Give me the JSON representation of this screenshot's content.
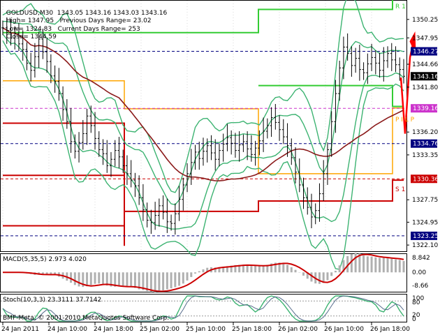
{
  "header": {
    "symbol": "GOLDUSD,M30",
    "ohlc": "1343.05 1343.16 1343.03 1343.16",
    "high": "High= 1347.95",
    "prev_range": "Previous Days Range= 23.02",
    "low": "Low= 1324.83",
    "curr_range": "Current Days Range= 253",
    "close": "Close= 1344.59"
  },
  "price_axis": {
    "ticks": [
      "1350.25",
      "1347.95",
      "1344.66",
      "1341.80",
      "1336.20",
      "1333.35",
      "1327.75",
      "1324.95",
      "1322.10"
    ],
    "badges": [
      {
        "label": "1346.27",
        "color": "#000080"
      },
      {
        "label": "1343.16",
        "color": "#000000"
      },
      {
        "label": "1339.16",
        "color": "#cc33cc"
      },
      {
        "label": "1334.76",
        "color": "#000080"
      },
      {
        "label": "1330.36",
        "color": "#cc0000"
      },
      {
        "label": "1323.25",
        "color": "#000080"
      }
    ]
  },
  "pivots": {
    "r1": "R 1",
    "pp": "P I  L P",
    "s1": "S 1"
  },
  "macd": {
    "label": "MACD(5,35,5) 2.973 4.020",
    "ticks": [
      "8.842",
      "0.00",
      "-8.66"
    ]
  },
  "stoch": {
    "label": "Stoch(10,3,3) 23.3111 37.7142",
    "ticks": [
      "100",
      "80",
      "20",
      "0"
    ],
    "copyright": "BMF-Meta, © 2001-2010 MetaQuotes Software Corp."
  },
  "time_axis": {
    "ticks": [
      "24 Jan 2011",
      "24 Jan 10:00",
      "24 Jan 18:00",
      "25 Jan 02:00",
      "25 Jan 10:00",
      "25 Jan 18:00",
      "26 Jan 02:00",
      "26 Jan 10:00",
      "26 Jan 18:00"
    ]
  },
  "colors": {
    "band": "#3cb371",
    "ma": "#8b1a1a",
    "pivot_r": "#33cc33",
    "pivot_p": "#ffa500",
    "pivot_s": "#cc0000",
    "macd_line": "#cc0000",
    "macd_hist": "#b0b0b0",
    "stoch_main": "#3cb371",
    "stoch_signal": "#556b8b",
    "arrow": "#ff0000"
  },
  "chart_data": {
    "type": "candlestick",
    "pane_price_range": [
      1321.5,
      1352.5
    ],
    "closes": [
      1349.2,
      1348.6,
      1347.9,
      1348.5,
      1347.2,
      1346.5,
      1344.8,
      1343.9,
      1345.6,
      1347.8,
      1346.2,
      1345.0,
      1343.2,
      1342.5,
      1341.0,
      1339.0,
      1337.5,
      1335.0,
      1333.8,
      1334.9,
      1336.0,
      1338.2,
      1337.0,
      1335.4,
      1334.0,
      1333.5,
      1332.0,
      1332.8,
      1333.9,
      1333.1,
      1332.0,
      1331.0,
      1330.2,
      1329.5,
      1328.0,
      1326.5,
      1325.2,
      1324.9,
      1325.8,
      1327.0,
      1326.2,
      1325.0,
      1324.8,
      1326.0,
      1327.8,
      1329.6,
      1331.0,
      1332.4,
      1333.7,
      1332.9,
      1333.8,
      1334.5,
      1333.6,
      1332.8,
      1333.9,
      1334.7,
      1335.5,
      1334.8,
      1333.9,
      1334.6,
      1335.0,
      1334.1,
      1333.4,
      1334.2,
      1335.1,
      1336.3,
      1337.0,
      1338.0,
      1337.4,
      1336.5,
      1335.6,
      1334.5,
      1333.0,
      1331.2,
      1329.6,
      1328.0,
      1326.8,
      1325.6,
      1326.4,
      1328.5,
      1331.0,
      1334.0,
      1337.5,
      1341.0,
      1344.2,
      1346.8,
      1346.0,
      1344.5,
      1345.4,
      1344.0,
      1343.6,
      1344.7,
      1345.5,
      1344.8,
      1343.9,
      1345.1,
      1346.0,
      1345.2,
      1344.6,
      1344.0,
      1343.16
    ],
    "macd_range": [
      -8.66,
      8.842
    ],
    "stoch_range": [
      0,
      100
    ]
  }
}
